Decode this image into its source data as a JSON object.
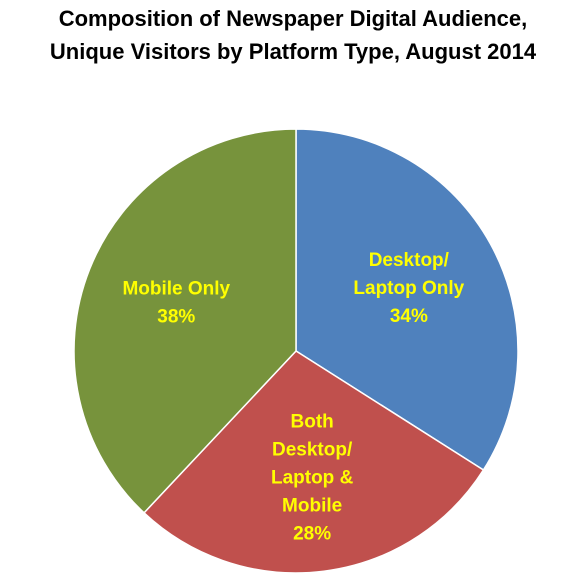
{
  "chart_data": {
    "type": "pie",
    "title_lines": [
      "Composition of Newspaper Digital Audience,",
      "Unique Visitors by Platform Type, August 2014"
    ],
    "label_color": "#FFFF00",
    "slices": [
      {
        "label_lines": [
          "Desktop/",
          "Laptop Only"
        ],
        "value": 34,
        "value_label": "34%",
        "color": "#4F81BD"
      },
      {
        "label_lines": [
          "Both",
          "Desktop/",
          "Laptop &",
          "Mobile"
        ],
        "value": 28,
        "value_label": "28%",
        "color": "#C0504D"
      },
      {
        "label_lines": [
          "Mobile Only"
        ],
        "value": 38,
        "value_label": "38%",
        "color": "#77933C"
      }
    ]
  }
}
